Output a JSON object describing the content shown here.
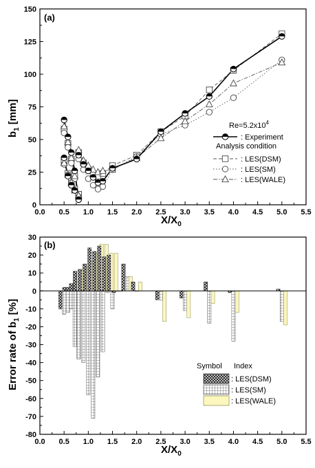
{
  "chart_data": [
    {
      "type": "line",
      "panel_label": "(a)",
      "xlabel": "X/X",
      "xlabel_sub": "0",
      "ylabel": "b",
      "ylabel_sub": "1",
      "ylabel_unit": " [mm]",
      "xlim": [
        0.0,
        5.5
      ],
      "ylim": [
        0,
        150
      ],
      "xticks": [
        "0.0",
        "0.5",
        "1.0",
        "1.5",
        "2.0",
        "2.5",
        "3.0",
        "3.5",
        "4.0",
        "4.5",
        "5.0",
        "5.5"
      ],
      "yticks": [
        "0",
        "25",
        "50",
        "75",
        "100",
        "125",
        "150"
      ],
      "re_text": "Re=5.2x10",
      "re_sup": "4",
      "legend_title": "Analysis condition",
      "series": [
        {
          "name": ": Experiment",
          "marker": "half-circle",
          "line": "solid",
          "branches": [
            [
              [
                0.5,
                65
              ],
              [
                0.58,
                52
              ],
              [
                0.65,
                40
              ],
              [
                0.72,
                26
              ],
              [
                0.8,
                4
              ]
            ],
            [
              [
                0.5,
                36
              ],
              [
                0.58,
                22
              ],
              [
                0.65,
                15
              ],
              [
                0.72,
                11
              ],
              [
                0.8,
                4
              ]
            ],
            [
              [
                0.8,
                38
              ],
              [
                0.9,
                31
              ],
              [
                1.0,
                26
              ],
              [
                1.1,
                21
              ],
              [
                1.2,
                17
              ],
              [
                1.3,
                18
              ],
              [
                1.5,
                28
              ],
              [
                2.0,
                35
              ],
              [
                2.5,
                56
              ],
              [
                3.0,
                70
              ],
              [
                3.5,
                83
              ],
              [
                4.0,
                104
              ],
              [
                5.0,
                129
              ]
            ]
          ]
        },
        {
          "name": ": LES(DSM)",
          "marker": "square",
          "line": "dashed",
          "branches": [
            [
              [
                0.5,
                58
              ],
              [
                0.58,
                47
              ],
              [
                0.65,
                35
              ],
              [
                0.72,
                22
              ],
              [
                0.8,
                8
              ]
            ],
            [
              [
                0.5,
                33
              ],
              [
                0.58,
                24
              ],
              [
                0.65,
                18
              ],
              [
                0.72,
                12
              ],
              [
                0.8,
                8
              ]
            ],
            [
              [
                0.8,
                40
              ],
              [
                0.9,
                32
              ],
              [
                1.0,
                27
              ],
              [
                1.1,
                23
              ],
              [
                1.2,
                22
              ],
              [
                1.3,
                24
              ],
              [
                1.5,
                30
              ],
              [
                2.0,
                38
              ],
              [
                2.5,
                56
              ],
              [
                3.0,
                68
              ],
              [
                3.5,
                88
              ],
              [
                4.0,
                103
              ],
              [
                5.0,
                131
              ]
            ]
          ]
        },
        {
          "name": ": LES(SM)",
          "marker": "circle",
          "line": "dotted",
          "branches": [
            [
              [
                0.5,
                55
              ],
              [
                0.58,
                44
              ],
              [
                0.65,
                32
              ],
              [
                0.72,
                20
              ],
              [
                0.8,
                6
              ]
            ],
            [
              [
                0.5,
                31
              ],
              [
                0.58,
                23
              ],
              [
                0.65,
                17
              ],
              [
                0.72,
                11
              ],
              [
                0.8,
                6
              ]
            ],
            [
              [
                0.8,
                35
              ],
              [
                0.9,
                27
              ],
              [
                1.0,
                20
              ],
              [
                1.1,
                15
              ],
              [
                1.2,
                12
              ],
              [
                1.3,
                14
              ],
              [
                1.5,
                27
              ],
              [
                2.0,
                37
              ],
              [
                2.5,
                54
              ],
              [
                3.0,
                61
              ],
              [
                3.5,
                71
              ],
              [
                4.0,
                82
              ],
              [
                5.0,
                111
              ]
            ]
          ]
        },
        {
          "name": ": LES(WALE)",
          "marker": "triangle",
          "line": "dashdot",
          "branches": [
            [
              [
                0.5,
                60
              ],
              [
                0.58,
                48
              ],
              [
                0.65,
                36
              ],
              [
                0.72,
                22
              ],
              [
                0.8,
                7
              ]
            ],
            [
              [
                0.5,
                32
              ],
              [
                0.58,
                23
              ],
              [
                0.65,
                17
              ],
              [
                0.72,
                11
              ],
              [
                0.8,
                7
              ]
            ],
            [
              [
                0.8,
                42
              ],
              [
                0.9,
                34
              ],
              [
                1.0,
                30
              ],
              [
                1.1,
                27
              ],
              [
                1.2,
                25
              ],
              [
                1.3,
                26
              ],
              [
                1.5,
                27
              ],
              [
                2.0,
                36
              ],
              [
                2.5,
                51
              ],
              [
                3.0,
                64
              ],
              [
                3.5,
                77
              ],
              [
                4.0,
                93
              ],
              [
                5.0,
                109
              ]
            ]
          ]
        }
      ]
    },
    {
      "type": "bar",
      "panel_label": "(b)",
      "xlabel": "X/X",
      "xlabel_sub": "0",
      "ylabel": "Error rate of b",
      "ylabel_sub": "1",
      "ylabel_unit": " [%]",
      "xlim": [
        0.0,
        5.5
      ],
      "ylim": [
        -80,
        30
      ],
      "xticks": [
        "0.0",
        "0.5",
        "1.0",
        "1.5",
        "2.0",
        "2.5",
        "3.0",
        "3.5",
        "4.0",
        "4.5",
        "5.0",
        "5.5"
      ],
      "yticks": [
        "30",
        "20",
        "10",
        "0",
        "-10",
        "-20",
        "-30",
        "-40",
        "-50",
        "-60",
        "-70",
        "-80"
      ],
      "legend_header_symbol": "Symbol",
      "legend_header_index": "Index",
      "x": [
        0.5,
        0.58,
        0.65,
        0.72,
        0.8,
        0.9,
        1.0,
        1.1,
        1.2,
        1.3,
        1.4,
        1.5,
        1.6,
        1.8,
        2.0,
        2.5,
        3.0,
        3.5,
        4.0,
        5.0
      ],
      "series": [
        {
          "name": ": LES(DSM)",
          "pattern": "crosshatch",
          "values": [
            -10,
            2,
            2,
            4,
            11,
            12,
            15,
            24,
            22,
            25,
            19,
            20,
            -1,
            15,
            5,
            -5,
            -4,
            5,
            -1,
            1
          ]
        },
        {
          "name": ": LES(SM)",
          "pattern": "grid",
          "values": [
            -13,
            -12,
            -10,
            -31,
            -38,
            -40,
            -58,
            -71,
            -48,
            -34,
            -1,
            -10,
            0,
            8,
            0,
            -5,
            -11,
            -18,
            -28,
            -17
          ]
        },
        {
          "name": ": LES(WALE)",
          "pattern": "yellow",
          "values": [
            -9,
            2,
            3,
            5,
            12,
            13,
            16,
            21,
            26,
            26,
            21,
            21,
            0,
            8,
            5,
            -17,
            -15,
            -7,
            -12,
            -19
          ]
        }
      ]
    }
  ]
}
